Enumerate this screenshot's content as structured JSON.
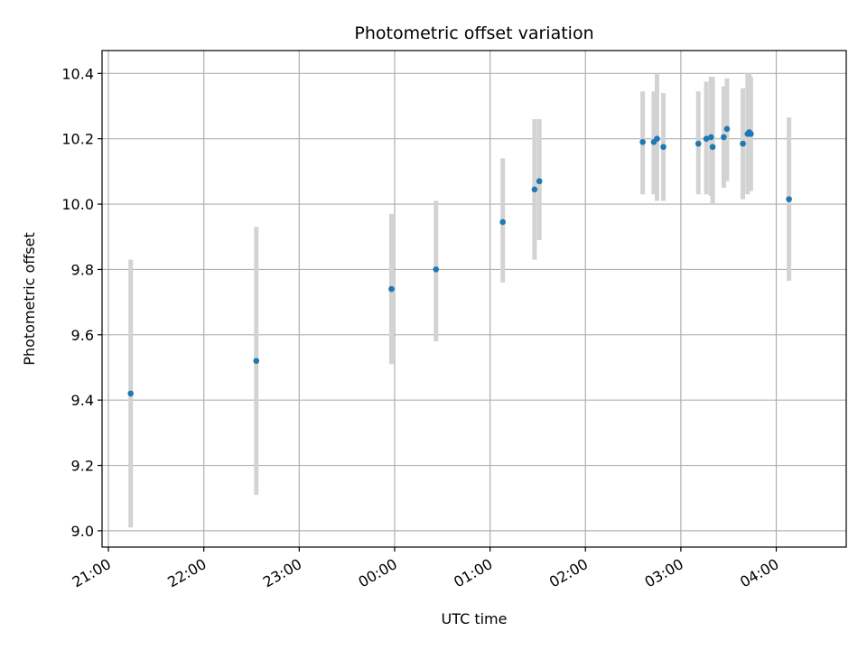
{
  "chart_data": {
    "type": "scatter",
    "title": "Photometric offset variation",
    "xlabel": "UTC time",
    "ylabel": "Photometric offset",
    "x_unit": "UTC time (HH:MM), night crossing midnight",
    "xlim": [
      "20:56",
      "04:44"
    ],
    "ylim": [
      8.95,
      10.47
    ],
    "x_ticks": [
      "21:00",
      "22:00",
      "23:00",
      "00:00",
      "01:00",
      "02:00",
      "03:00",
      "04:00"
    ],
    "y_ticks": [
      9.0,
      9.2,
      9.4,
      9.6,
      9.8,
      10.0,
      10.2,
      10.4
    ],
    "y_tick_labels": [
      "9.0",
      "9.2",
      "9.4",
      "9.6",
      "9.8",
      "10.0",
      "10.2",
      "10.4"
    ],
    "grid": true,
    "point_color": "#1f77b4",
    "errorbar_color": "#d3d3d3",
    "points": [
      {
        "x": "21:14",
        "y": 9.42,
        "ylow": 9.01,
        "yhigh": 9.83
      },
      {
        "x": "22:33",
        "y": 9.52,
        "ylow": 9.11,
        "yhigh": 9.93
      },
      {
        "x": "23:58",
        "y": 9.74,
        "ylow": 9.51,
        "yhigh": 9.97
      },
      {
        "x": "00:26",
        "y": 9.8,
        "ylow": 9.58,
        "yhigh": 10.01
      },
      {
        "x": "01:08",
        "y": 9.945,
        "ylow": 9.76,
        "yhigh": 10.14
      },
      {
        "x": "01:28",
        "y": 10.045,
        "ylow": 9.83,
        "yhigh": 10.26
      },
      {
        "x": "01:31",
        "y": 10.07,
        "ylow": 9.89,
        "yhigh": 10.26
      },
      {
        "x": "02:36",
        "y": 10.19,
        "ylow": 10.03,
        "yhigh": 10.345
      },
      {
        "x": "02:43",
        "y": 10.19,
        "ylow": 10.03,
        "yhigh": 10.345
      },
      {
        "x": "02:45",
        "y": 10.2,
        "ylow": 10.01,
        "yhigh": 10.4
      },
      {
        "x": "02:49",
        "y": 10.175,
        "ylow": 10.01,
        "yhigh": 10.34
      },
      {
        "x": "03:11",
        "y": 10.185,
        "ylow": 10.03,
        "yhigh": 10.345
      },
      {
        "x": "03:16",
        "y": 10.2,
        "ylow": 10.03,
        "yhigh": 10.375
      },
      {
        "x": "03:19",
        "y": 10.205,
        "ylow": 10.025,
        "yhigh": 10.39
      },
      {
        "x": "03:20",
        "y": 10.175,
        "ylow": 10.0,
        "yhigh": 10.39
      },
      {
        "x": "03:27",
        "y": 10.205,
        "ylow": 10.05,
        "yhigh": 10.36
      },
      {
        "x": "03:29",
        "y": 10.23,
        "ylow": 10.07,
        "yhigh": 10.385
      },
      {
        "x": "03:39",
        "y": 10.185,
        "ylow": 10.015,
        "yhigh": 10.355
      },
      {
        "x": "03:42",
        "y": 10.215,
        "ylow": 10.03,
        "yhigh": 10.4
      },
      {
        "x": "03:43",
        "y": 10.22,
        "ylow": 10.045,
        "yhigh": 10.4
      },
      {
        "x": "03:44",
        "y": 10.215,
        "ylow": 10.04,
        "yhigh": 10.39
      },
      {
        "x": "04:08",
        "y": 10.015,
        "ylow": 9.765,
        "yhigh": 10.265
      }
    ]
  }
}
